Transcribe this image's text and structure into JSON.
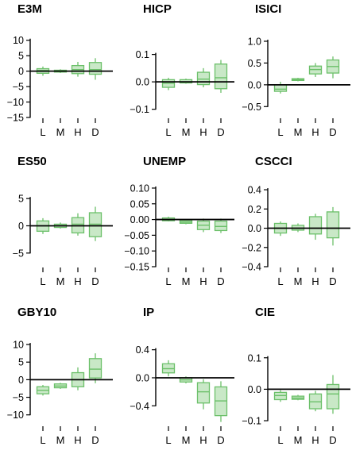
{
  "colors": {
    "box_fill": "#c9e8c7",
    "box_stroke": "#6cc06a",
    "axis": "#000000"
  },
  "chart_data": [
    {
      "type": "box",
      "title": "E3M",
      "categories": [
        "L",
        "M",
        "H",
        "D"
      ],
      "yticks": [
        10,
        5,
        0,
        -5,
        -10,
        -15
      ],
      "ytick_labels": [
        "10",
        "5",
        "0",
        "−5",
        "−10",
        "−15"
      ],
      "ylim": [
        -15,
        12.5
      ],
      "boxes": [
        {
          "whisker_low": -1.5,
          "q1": -0.7,
          "median": 0.2,
          "q3": 0.8,
          "whisker_high": 1.5
        },
        {
          "whisker_low": -0.6,
          "q1": -0.3,
          "median": 0.0,
          "q3": 0.3,
          "whisker_high": 0.6
        },
        {
          "whisker_low": -1.8,
          "q1": -0.8,
          "median": 0.5,
          "q3": 1.8,
          "whisker_high": 3.0
        },
        {
          "whisker_low": -2.8,
          "q1": -1.0,
          "median": 0.5,
          "q3": 2.8,
          "whisker_high": 4.2
        }
      ]
    },
    {
      "type": "box",
      "title": "HICP",
      "categories": [
        "L",
        "M",
        "H",
        "D"
      ],
      "yticks": [
        0.1,
        0.0,
        -0.1
      ],
      "ytick_labels": [
        "0.1",
        "0.0",
        "−0.1"
      ],
      "ylim": [
        -0.13,
        0.18
      ],
      "boxes": [
        {
          "whisker_low": -0.03,
          "q1": -0.02,
          "median": -0.005,
          "q3": 0.008,
          "whisker_high": 0.015
        },
        {
          "whisker_low": -0.007,
          "q1": -0.004,
          "median": 0.0,
          "q3": 0.008,
          "whisker_high": 0.012
        },
        {
          "whisker_low": -0.02,
          "q1": -0.01,
          "median": 0.01,
          "q3": 0.035,
          "whisker_high": 0.05
        },
        {
          "whisker_low": -0.04,
          "q1": -0.025,
          "median": 0.015,
          "q3": 0.065,
          "whisker_high": 0.08
        }
      ]
    },
    {
      "type": "box",
      "title": "ISICI",
      "categories": [
        "L",
        "M",
        "H",
        "D"
      ],
      "yticks": [
        1.0,
        0.5,
        0.0,
        -0.5
      ],
      "ytick_labels": [
        "1.0",
        "0.5",
        "0.0",
        "−0.5"
      ],
      "ylim": [
        -0.75,
        1.2
      ],
      "boxes": [
        {
          "whisker_low": -0.2,
          "q1": -0.15,
          "median": -0.1,
          "q3": 0.0,
          "whisker_high": 0.07
        },
        {
          "whisker_low": 0.08,
          "q1": 0.1,
          "median": 0.12,
          "q3": 0.14,
          "whisker_high": 0.16
        },
        {
          "whisker_low": 0.18,
          "q1": 0.25,
          "median": 0.35,
          "q3": 0.43,
          "whisker_high": 0.5
        },
        {
          "whisker_low": 0.15,
          "q1": 0.27,
          "median": 0.42,
          "q3": 0.57,
          "whisker_high": 0.65
        }
      ]
    },
    {
      "type": "box",
      "title": "ES50",
      "categories": [
        "L",
        "M",
        "H",
        "D"
      ],
      "yticks": [
        5,
        0,
        -5
      ],
      "ytick_labels": [
        "5",
        "0",
        "−5"
      ],
      "ylim": [
        -7.5,
        7.5
      ],
      "boxes": [
        {
          "whisker_low": -1.5,
          "q1": -1.0,
          "median": 0.0,
          "q3": 0.9,
          "whisker_high": 1.4
        },
        {
          "whisker_low": -0.5,
          "q1": -0.3,
          "median": 0.0,
          "q3": 0.3,
          "whisker_high": 0.6
        },
        {
          "whisker_low": -1.8,
          "q1": -1.3,
          "median": 0.3,
          "q3": 1.5,
          "whisker_high": 2.3
        },
        {
          "whisker_low": -2.8,
          "q1": -2.0,
          "median": 0.3,
          "q3": 2.4,
          "whisker_high": 3.5
        }
      ]
    },
    {
      "type": "box",
      "title": "UNEMP",
      "categories": [
        "L",
        "M",
        "H",
        "D"
      ],
      "yticks": [
        0.1,
        0.05,
        0.0,
        -0.05,
        -0.1,
        -0.15
      ],
      "ytick_labels": [
        "0.10",
        "0.05",
        "0.00",
        "−0.05",
        "−0.10",
        "−0.15"
      ],
      "ylim": [
        -0.15,
        0.11
      ],
      "boxes": [
        {
          "whisker_low": -0.006,
          "q1": -0.004,
          "median": 0.0,
          "q3": 0.005,
          "whisker_high": 0.009
        },
        {
          "whisker_low": -0.015,
          "q1": -0.012,
          "median": -0.008,
          "q3": -0.003,
          "whisker_high": 0.0
        },
        {
          "whisker_low": -0.04,
          "q1": -0.032,
          "median": -0.018,
          "q3": -0.005,
          "whisker_high": 0.003
        },
        {
          "whisker_low": -0.043,
          "q1": -0.035,
          "median": -0.022,
          "q3": -0.005,
          "whisker_high": 0.003
        }
      ]
    },
    {
      "type": "box",
      "title": "CSCCI",
      "categories": [
        "L",
        "M",
        "H",
        "D"
      ],
      "yticks": [
        0.4,
        0.2,
        0.0,
        -0.2,
        -0.4
      ],
      "ytick_labels": [
        "0.4",
        "0.2",
        "0.0",
        "−0.2",
        "−0.4"
      ],
      "ylim": [
        -0.4,
        0.45
      ],
      "boxes": [
        {
          "whisker_low": -0.08,
          "q1": -0.05,
          "median": 0.0,
          "q3": 0.05,
          "whisker_high": 0.07
        },
        {
          "whisker_low": -0.04,
          "q1": -0.02,
          "median": 0.0,
          "q3": 0.03,
          "whisker_high": 0.05
        },
        {
          "whisker_low": -0.12,
          "q1": -0.06,
          "median": 0.0,
          "q3": 0.12,
          "whisker_high": 0.15
        },
        {
          "whisker_low": -0.18,
          "q1": -0.1,
          "median": 0.0,
          "q3": 0.17,
          "whisker_high": 0.22
        }
      ]
    },
    {
      "type": "box",
      "title": "GBY10",
      "categories": [
        "L",
        "M",
        "H",
        "D"
      ],
      "yticks": [
        10,
        5,
        0,
        -5,
        -10
      ],
      "ytick_labels": [
        "10",
        "5",
        "0",
        "−5",
        "−10"
      ],
      "ylim": [
        -13,
        12.5
      ],
      "boxes": [
        {
          "whisker_low": -4.5,
          "q1": -4.0,
          "median": -3.0,
          "q3": -2.0,
          "whisker_high": -1.5
        },
        {
          "whisker_low": -2.6,
          "q1": -2.3,
          "median": -1.8,
          "q3": -1.2,
          "whisker_high": -0.9
        },
        {
          "whisker_low": -3.0,
          "q1": -2.0,
          "median": 0.0,
          "q3": 2.0,
          "whisker_high": 3.5
        },
        {
          "whisker_low": -1.0,
          "q1": 0.5,
          "median": 3.0,
          "q3": 6.0,
          "whisker_high": 7.5
        }
      ]
    },
    {
      "type": "box",
      "title": "IP",
      "categories": [
        "L",
        "M",
        "H",
        "D"
      ],
      "yticks": [
        0.4,
        0.0,
        -0.4
      ],
      "ytick_labels": [
        "0.4",
        "0.0",
        "−0.4"
      ],
      "ylim": [
        -0.68,
        0.6
      ],
      "boxes": [
        {
          "whisker_low": 0.02,
          "q1": 0.07,
          "median": 0.13,
          "q3": 0.2,
          "whisker_high": 0.25
        },
        {
          "whisker_low": -0.08,
          "q1": -0.06,
          "median": -0.03,
          "q3": 0.0,
          "whisker_high": 0.02
        },
        {
          "whisker_low": -0.45,
          "q1": -0.36,
          "median": -0.2,
          "q3": -0.07,
          "whisker_high": -0.02
        },
        {
          "whisker_low": -0.63,
          "q1": -0.54,
          "median": -0.33,
          "q3": -0.13,
          "whisker_high": -0.05
        }
      ]
    },
    {
      "type": "box",
      "title": "CIE",
      "categories": [
        "L",
        "M",
        "H",
        "D"
      ],
      "yticks": [
        0.1,
        0.0,
        -0.1
      ],
      "ytick_labels": [
        "0.1",
        "0.0",
        "−0.1"
      ],
      "ylim": [
        -0.115,
        0.17
      ],
      "boxes": [
        {
          "whisker_low": -0.04,
          "q1": -0.033,
          "median": -0.02,
          "q3": -0.01,
          "whisker_high": -0.003
        },
        {
          "whisker_low": -0.035,
          "q1": -0.032,
          "median": -0.028,
          "q3": -0.022,
          "whisker_high": -0.018
        },
        {
          "whisker_low": -0.07,
          "q1": -0.062,
          "median": -0.04,
          "q3": -0.015,
          "whisker_high": -0.005
        },
        {
          "whisker_low": -0.078,
          "q1": -0.062,
          "median": -0.015,
          "q3": 0.015,
          "whisker_high": 0.045
        }
      ]
    }
  ]
}
